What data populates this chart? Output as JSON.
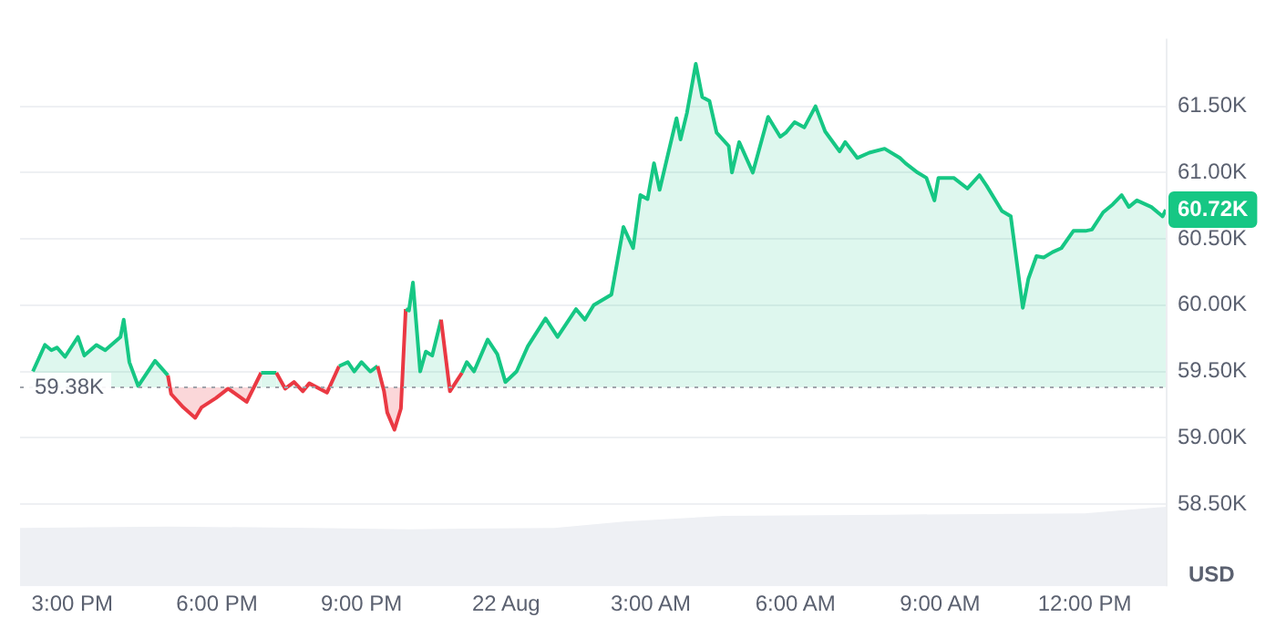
{
  "chart_data": {
    "type": "area",
    "ylabel": "USD",
    "xlim": [
      "--08-21T13:55",
      "--08-22T13:42"
    ],
    "xticks": [
      {
        "value": "--08-21T15:00",
        "label": "3:00 PM"
      },
      {
        "value": "--08-21T18:00",
        "label": "6:00 PM"
      },
      {
        "value": "--08-21T21:00",
        "label": "9:00 PM"
      },
      {
        "value": "--08-22T00:00",
        "label": "22 Aug"
      },
      {
        "value": "--08-22T03:00",
        "label": "3:00 AM"
      },
      {
        "value": "--08-22T06:00",
        "label": "6:00 AM"
      },
      {
        "value": "--08-22T09:00",
        "label": "9:00 AM"
      },
      {
        "value": "--08-22T12:00",
        "label": "12:00 PM"
      }
    ],
    "ylim": [
      57880,
      62010
    ],
    "yticks": [
      {
        "value": 58500,
        "label": "58.50K"
      },
      {
        "value": 59000,
        "label": "59.00K"
      },
      {
        "value": 59500,
        "label": "59.50K"
      },
      {
        "value": 60000,
        "label": "60.00K"
      },
      {
        "value": 60500,
        "label": "60.50K"
      },
      {
        "value": 61000,
        "label": "61.00K"
      },
      {
        "value": 61500,
        "label": "61.50K"
      }
    ],
    "grid": "y",
    "legend": false,
    "ref_lines": [
      {
        "axis": "y",
        "value": 59380,
        "label": "59.38K",
        "color": "#a0a4ab",
        "line_style": "dotted"
      }
    ],
    "annotations": [
      {
        "text": "60.72K",
        "x": "--08-22T13:41",
        "y": 60720
      }
    ],
    "series": [
      {
        "color": "#eef0f4",
        "x": [
          "--08-21T13:55",
          "--08-21T17:00",
          "--08-21T20:00",
          "--08-21T22:00",
          "--08-22T01:00",
          "--08-22T02:30",
          "--08-22T04:30",
          "--08-22T08:00",
          "--08-22T12:00",
          "--08-22T13:42"
        ],
        "values": [
          58320,
          58330,
          58320,
          58310,
          58320,
          58370,
          58410,
          58420,
          58430,
          58480
        ]
      },
      {
        "color": "#16c784",
        "x": [
          "--08-21T14:11",
          "--08-21T14:26",
          "--08-21T14:34",
          "--08-21T14:41",
          "--08-21T14:51",
          "--08-21T15:07",
          "--08-21T15:15",
          "--08-21T15:30",
          "--08-21T15:41",
          "--08-21T16:00",
          "--08-21T16:04",
          "--08-21T16:11",
          "--08-21T16:22",
          "--08-21T16:43",
          "--08-21T16:59",
          "--08-21T17:03",
          "--08-21T17:18",
          "--08-21T17:33",
          "--08-21T17:41",
          "--08-21T17:59",
          "--08-21T18:14",
          "--08-21T18:37",
          "--08-21T18:55",
          "--08-21T19:14",
          "--08-21T19:25",
          "--08-21T19:36",
          "--08-21T19:47",
          "--08-21T19:55",
          "--08-21T20:17",
          "--08-21T20:32",
          "--08-21T20:43",
          "--08-21T20:51",
          "--08-21T21:00",
          "--08-21T21:11",
          "--08-21T21:20",
          "--08-21T21:28",
          "--08-21T21:32",
          "--08-21T21:41",
          "--08-21T21:49",
          "--08-21T21:55",
          "--08-21T21:59",
          "--08-21T22:04",
          "--08-21T22:13",
          "--08-21T22:20",
          "--08-21T22:28",
          "--08-21T22:39",
          "--08-21T22:50",
          "--08-21T23:05",
          "--08-21T23:11",
          "--08-21T23:20",
          "--08-21T23:37",
          "--08-21T23:49",
          "--08-21T23:59",
          "--08-22T00:13",
          "--08-22T00:27",
          "--08-22T00:49",
          "--08-22T01:04",
          "--08-22T01:27",
          "--08-22T01:38",
          "--08-22T01:49",
          "--08-22T02:11",
          "--08-22T02:26",
          "--08-22T02:38",
          "--08-22T02:47",
          "--08-22T02:56",
          "--08-22T03:04",
          "--08-22T03:11",
          "--08-22T03:32",
          "--08-22T03:37",
          "--08-22T03:45",
          "--08-22T03:56",
          "--08-22T04:04",
          "--08-22T04:13",
          "--08-22T04:22",
          "--08-22T04:37",
          "--08-22T04:41",
          "--08-22T04:50",
          "--08-22T05:07",
          "--08-22T05:26",
          "--08-22T05:41",
          "--08-22T05:48",
          "--08-22T05:59",
          "--08-22T06:11",
          "--08-22T06:25",
          "--08-22T06:37",
          "--08-22T06:55",
          "--08-22T07:02",
          "--08-22T07:17",
          "--08-22T07:32",
          "--08-22T07:51",
          "--08-22T08:10",
          "--08-22T08:17",
          "--08-22T08:32",
          "--08-22T08:43",
          "--08-22T08:53",
          "--08-22T08:58",
          "--08-22T09:17",
          "--08-22T09:34",
          "--08-22T09:49",
          "--08-22T09:58",
          "--08-22T10:17",
          "--08-22T10:28",
          "--08-22T10:43",
          "--08-22T10:50",
          "--08-22T11:00",
          "--08-22T11:09",
          "--08-22T11:20",
          "--08-22T11:31",
          "--08-22T11:46",
          "--08-22T12:01",
          "--08-22T12:09",
          "--08-22T12:23",
          "--08-22T12:35",
          "--08-22T12:46",
          "--08-22T12:55",
          "--08-22T13:05",
          "--08-22T13:23",
          "--08-22T13:37",
          "--08-22T13:41"
        ],
        "values": [
          59500,
          59700,
          59660,
          59680,
          59610,
          59760,
          59620,
          59700,
          59660,
          59760,
          59890,
          59570,
          59390,
          59580,
          59470,
          59330,
          59230,
          59150,
          59230,
          59300,
          59370,
          59270,
          59490,
          59490,
          59370,
          59420,
          59350,
          59410,
          59340,
          59540,
          59570,
          59500,
          59570,
          59500,
          59540,
          59350,
          59190,
          59060,
          59220,
          59970,
          59960,
          60170,
          59500,
          59650,
          59620,
          59890,
          59350,
          59490,
          59570,
          59500,
          59740,
          59630,
          59420,
          59500,
          59690,
          59900,
          59760,
          59970,
          59890,
          60000,
          60080,
          60590,
          60430,
          60830,
          60800,
          61070,
          60870,
          61410,
          61250,
          61450,
          61820,
          61570,
          61540,
          61300,
          61200,
          61000,
          61230,
          61000,
          61420,
          61270,
          61300,
          61380,
          61340,
          61500,
          61310,
          61160,
          61230,
          61110,
          61150,
          61180,
          61110,
          61070,
          61000,
          60960,
          60790,
          60960,
          60960,
          60880,
          60980,
          60900,
          60710,
          60670,
          59980,
          60200,
          60370,
          60360,
          60400,
          60430,
          60560,
          60560,
          60570,
          60700,
          60760,
          60830,
          60740,
          60790,
          60740,
          60670,
          60720
        ],
        "colors": [
          "#16c784",
          "#16c784",
          "#16c784",
          "#16c784",
          "#16c784",
          "#16c784",
          "#16c784",
          "#16c784",
          "#16c784",
          "#16c784",
          "#16c784",
          "#16c784",
          "#16c784",
          "#16c784",
          "#16c784",
          "#ea3943",
          "#ea3943",
          "#ea3943",
          "#ea3943",
          "#ea3943",
          "#ea3943",
          "#ea3943",
          "#16c784",
          "#16c784",
          "#ea3943",
          "#16c784",
          "#ea3943",
          "#16c784",
          "#ea3943",
          "#16c784",
          "#16c784",
          "#16c784",
          "#16c784",
          "#16c784",
          "#16c784",
          "#ea3943",
          "#ea3943",
          "#ea3943",
          "#ea3943",
          "#16c784",
          "#16c784",
          "#16c784",
          "#16c784",
          "#16c784",
          "#16c784",
          "#16c784",
          "#ea3943",
          "#16c784",
          "#16c784",
          "#16c784",
          "#16c784",
          "#16c784",
          "#16c784",
          "#16c784",
          "#16c784",
          "#16c784",
          "#16c784",
          "#16c784",
          "#16c784",
          "#16c784",
          "#16c784",
          "#16c784",
          "#16c784",
          "#16c784",
          "#16c784",
          "#16c784",
          "#16c784",
          "#16c784",
          "#16c784",
          "#16c784",
          "#16c784",
          "#16c784",
          "#16c784",
          "#16c784",
          "#16c784",
          "#16c784",
          "#16c784",
          "#16c784",
          "#16c784",
          "#16c784",
          "#16c784",
          "#16c784",
          "#16c784",
          "#16c784",
          "#16c784",
          "#16c784",
          "#16c784",
          "#16c784",
          "#16c784",
          "#16c784",
          "#16c784",
          "#16c784",
          "#16c784",
          "#16c784",
          "#16c784",
          "#16c784",
          "#16c784",
          "#16c784",
          "#16c784",
          "#16c784",
          "#16c784",
          "#16c784",
          "#16c784",
          "#16c784",
          "#16c784",
          "#16c784",
          "#16c784",
          "#16c784",
          "#16c784",
          "#16c784",
          "#16c784",
          "#16c784",
          "#16c784",
          "#16c784",
          "#16c784",
          "#16c784",
          "#16c784",
          "#16c784",
          "#16c784"
        ]
      }
    ]
  }
}
